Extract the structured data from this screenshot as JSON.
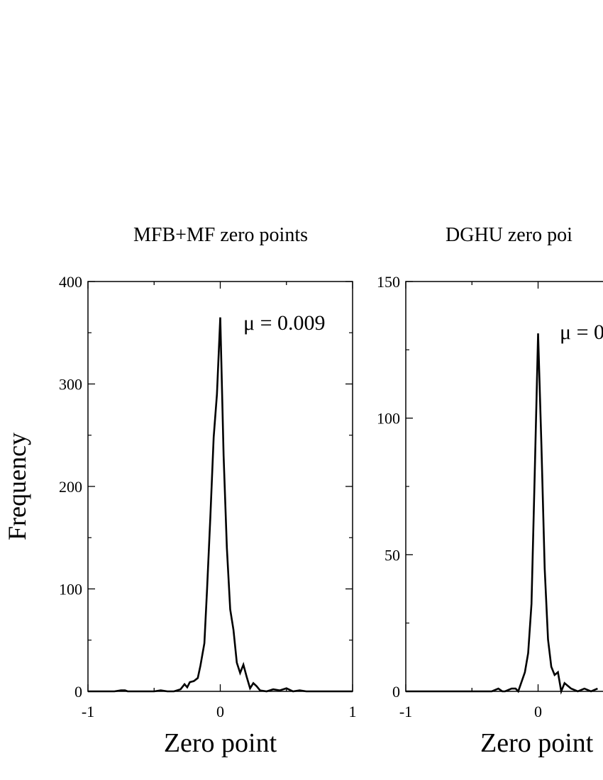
{
  "y_axis_label": "Frequency",
  "chart_data": [
    {
      "type": "line",
      "title": "MFB+MF zero points",
      "xlabel": "Zero point",
      "ylabel": "Frequency",
      "annotation": "μ = 0.009",
      "xlim": [
        -1,
        1
      ],
      "ylim": [
        0,
        400
      ],
      "x_ticks": [
        "-1",
        "0",
        "1"
      ],
      "y_ticks": [
        "0",
        "100",
        "200",
        "300",
        "400"
      ],
      "grid": false,
      "series": [
        {
          "x": [
            -1,
            -0.95,
            -0.9,
            -0.85,
            -0.8,
            -0.75,
            -0.72,
            -0.7,
            -0.65,
            -0.6,
            -0.55,
            -0.5,
            -0.45,
            -0.4,
            -0.35,
            -0.3,
            -0.27,
            -0.25,
            -0.23,
            -0.2,
            -0.17,
            -0.15,
            -0.12,
            -0.1,
            -0.075,
            -0.05,
            -0.025,
            0,
            0.025,
            0.05,
            0.075,
            0.1,
            0.125,
            0.15,
            0.175,
            0.2,
            0.225,
            0.25,
            0.275,
            0.3,
            0.35,
            0.4,
            0.45,
            0.5,
            0.55,
            0.6,
            0.65,
            0.7,
            0.8,
            0.9,
            1
          ],
          "y": [
            0,
            0,
            0,
            0,
            0,
            1,
            1,
            0,
            0,
            0,
            0,
            0,
            1,
            0,
            0,
            2,
            7,
            4,
            9,
            10,
            13,
            25,
            47,
            100,
            170,
            248,
            290,
            365,
            230,
            140,
            80,
            60,
            28,
            18,
            26,
            14,
            3,
            8,
            5,
            1,
            0,
            2,
            1,
            3,
            0,
            1,
            0,
            0,
            0,
            0,
            0
          ]
        }
      ]
    },
    {
      "type": "line",
      "title": "DGHU zero poi",
      "xlabel": "Zero point",
      "ylabel": "",
      "annotation": "μ = 0",
      "xlim": [
        -1,
        1
      ],
      "ylim": [
        0,
        150
      ],
      "x_ticks": [
        "-1",
        "0"
      ],
      "y_ticks": [
        "0",
        "50",
        "100",
        "150"
      ],
      "grid": false,
      "series": [
        {
          "x": [
            -1,
            -0.8,
            -0.6,
            -0.5,
            -0.4,
            -0.35,
            -0.3,
            -0.27,
            -0.25,
            -0.2,
            -0.17,
            -0.15,
            -0.1,
            -0.075,
            -0.05,
            -0.025,
            0,
            0.025,
            0.05,
            0.075,
            0.1,
            0.125,
            0.15,
            0.175,
            0.2,
            0.25,
            0.3,
            0.35,
            0.4,
            0.45
          ],
          "y": [
            0,
            0,
            0,
            0,
            0,
            0,
            1,
            0,
            0,
            1,
            1,
            0,
            7,
            14,
            32,
            80,
            131,
            90,
            45,
            19,
            9,
            6,
            7,
            0,
            3,
            1,
            0,
            1,
            0,
            1
          ]
        }
      ]
    }
  ]
}
